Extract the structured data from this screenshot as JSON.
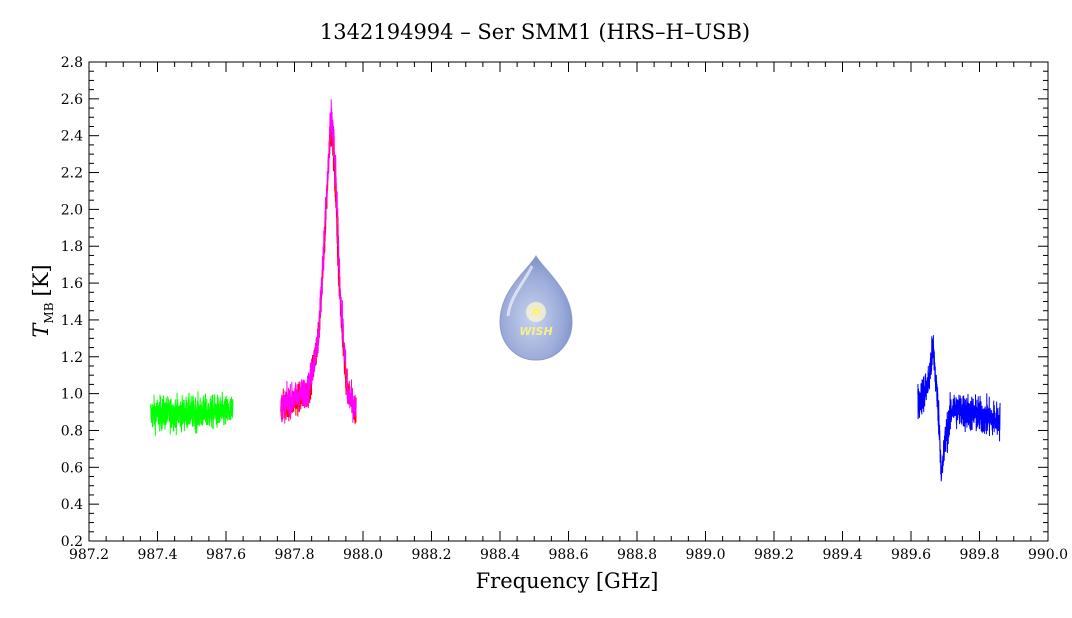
{
  "chart_data": {
    "type": "line",
    "title": "1342194994 – Ser SMM1 (HRS–H–USB)",
    "xlabel": "Frequency [GHz]",
    "ylabel": {
      "main": "T",
      "subscript": "MB",
      "unit": "[K]"
    },
    "xlim": [
      987.2,
      990.0
    ],
    "ylim": [
      0.2,
      2.8
    ],
    "xticks": [
      "987.2",
      "987.4",
      "987.6",
      "987.8",
      "988.0",
      "988.2",
      "988.4",
      "988.6",
      "988.8",
      "989.0",
      "989.2",
      "989.4",
      "989.6",
      "989.8",
      "990.0"
    ],
    "yticks": [
      "0.2",
      "0.4",
      "0.6",
      "0.8",
      "1.0",
      "1.2",
      "1.4",
      "1.6",
      "1.8",
      "2.0",
      "2.2",
      "2.4",
      "2.6",
      "2.8"
    ],
    "grid": false,
    "series": [
      {
        "color": "#00ff00",
        "x_range": [
          987.38,
          987.62
        ],
        "profile": [
          [
            987.38,
            0.89
          ],
          [
            987.62,
            0.9
          ]
        ],
        "noise": 0.09
      },
      {
        "color": "#ff0000",
        "x_range": [
          987.76,
          987.98
        ],
        "profile": [
          [
            987.76,
            0.92
          ],
          [
            987.84,
            1.0
          ],
          [
            987.87,
            1.3
          ],
          [
            987.89,
            1.9
          ],
          [
            987.905,
            2.45
          ],
          [
            987.915,
            2.3
          ],
          [
            987.93,
            1.6
          ],
          [
            987.95,
            1.05
          ],
          [
            987.98,
            0.9
          ]
        ],
        "noise": 0.08
      },
      {
        "color": "#ff00ff",
        "x_range": [
          987.76,
          987.98
        ],
        "profile": [
          [
            987.76,
            0.93
          ],
          [
            987.84,
            1.02
          ],
          [
            987.87,
            1.3
          ],
          [
            987.89,
            1.95
          ],
          [
            987.908,
            2.52
          ],
          [
            987.92,
            2.2
          ],
          [
            987.935,
            1.5
          ],
          [
            987.955,
            1.0
          ],
          [
            987.98,
            0.92
          ]
        ],
        "noise": 0.08
      },
      {
        "color": "#0000ff",
        "x_range": [
          989.62,
          989.86
        ],
        "profile": [
          [
            989.62,
            0.95
          ],
          [
            989.65,
            1.05
          ],
          [
            989.665,
            1.25
          ],
          [
            989.68,
            0.9
          ],
          [
            989.69,
            0.55
          ],
          [
            989.7,
            0.75
          ],
          [
            989.72,
            0.92
          ],
          [
            989.86,
            0.85
          ]
        ],
        "noise": 0.1
      }
    ]
  },
  "logo": {
    "text": "WISH"
  }
}
